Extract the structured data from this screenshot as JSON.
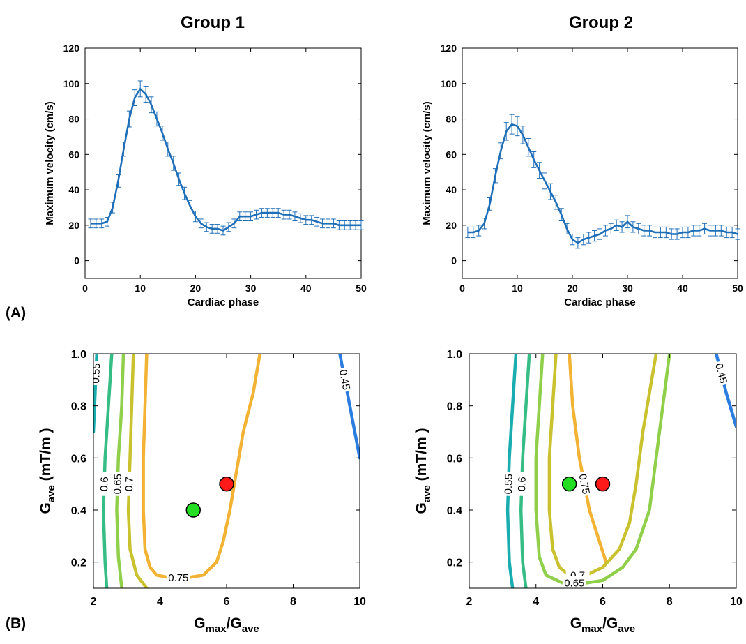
{
  "chart_data": [
    {
      "type": "line",
      "title": "Group 1",
      "panel_label": "(A)",
      "xlabel": "Cardiac phase",
      "ylabel": "Maximum velocity (cm/s)",
      "xlim": [
        0,
        50
      ],
      "ylim": [
        -10,
        120
      ],
      "xticks": [
        "0",
        "10",
        "20",
        "30",
        "40",
        "50"
      ],
      "yticks": [
        "0",
        "20",
        "40",
        "60",
        "80",
        "100",
        "120"
      ],
      "color": "#1f6fb8",
      "x": [
        1,
        2,
        3,
        4,
        5,
        6,
        7,
        8,
        9,
        10,
        11,
        12,
        13,
        14,
        15,
        16,
        17,
        18,
        19,
        20,
        21,
        22,
        23,
        24,
        25,
        26,
        27,
        28,
        29,
        30,
        31,
        32,
        33,
        34,
        35,
        36,
        37,
        38,
        39,
        40,
        41,
        42,
        43,
        44,
        45,
        46,
        47,
        48,
        49,
        50
      ],
      "values": [
        21,
        21,
        21,
        22,
        30,
        45,
        63,
        80,
        92,
        97,
        94,
        88,
        80,
        72,
        63,
        55,
        46,
        38,
        31,
        25,
        21,
        19,
        18,
        18,
        17,
        19,
        21,
        25,
        25,
        25,
        26,
        27,
        27,
        27,
        27,
        26,
        26,
        25,
        24,
        23,
        23,
        22,
        21,
        21,
        21,
        20,
        20,
        20,
        20,
        20
      ],
      "errors": [
        2.5,
        2.5,
        2.5,
        2.5,
        3,
        3.5,
        4,
        4.5,
        4.5,
        4.5,
        4.5,
        4.5,
        4,
        4,
        4,
        4,
        3.5,
        3.5,
        3,
        3,
        2.5,
        2.5,
        2.5,
        2.5,
        2.5,
        2.5,
        2.5,
        2.5,
        2.5,
        2.5,
        2.5,
        2.5,
        2.5,
        2.5,
        2.5,
        2.5,
        2.5,
        2.5,
        2.5,
        2.5,
        2.5,
        2.5,
        2.5,
        2.5,
        2.5,
        2.5,
        2.5,
        2.5,
        2.5,
        2.5
      ]
    },
    {
      "type": "line",
      "title": "Group 2",
      "xlabel": "Cardiac phase",
      "ylabel": "Maximum velocity (cm/s)",
      "xlim": [
        0,
        50
      ],
      "ylim": [
        -10,
        120
      ],
      "xticks": [
        "0",
        "10",
        "20",
        "30",
        "40",
        "50"
      ],
      "yticks": [
        "0",
        "20",
        "40",
        "60",
        "80",
        "100",
        "120"
      ],
      "color": "#1f6fb8",
      "x": [
        1,
        2,
        3,
        4,
        5,
        6,
        7,
        8,
        9,
        10,
        11,
        12,
        13,
        14,
        15,
        16,
        17,
        18,
        19,
        20,
        21,
        22,
        23,
        24,
        25,
        26,
        27,
        28,
        29,
        30,
        31,
        32,
        33,
        34,
        35,
        36,
        37,
        38,
        39,
        40,
        41,
        42,
        43,
        44,
        45,
        46,
        47,
        48,
        49,
        50
      ],
      "values": [
        16,
        16,
        17,
        21,
        32,
        48,
        62,
        73,
        77,
        76,
        71,
        64,
        57,
        51,
        45,
        39,
        33,
        26,
        18,
        12,
        10,
        12,
        13,
        14,
        15,
        17,
        18,
        20,
        19,
        22,
        19,
        18,
        17,
        17,
        16,
        16,
        16,
        15,
        15,
        16,
        16,
        17,
        17,
        18,
        17,
        17,
        17,
        16,
        16,
        15
      ],
      "errors": [
        3,
        3,
        3,
        3,
        3.5,
        4,
        4.5,
        5,
        5.5,
        5.5,
        5,
        5,
        4.5,
        4.5,
        4.5,
        4.5,
        4,
        3.5,
        3,
        3,
        3,
        3,
        3,
        3,
        3,
        3,
        3,
        3,
        3,
        3.5,
        3,
        3,
        3,
        3,
        3,
        3,
        3,
        3,
        3,
        3,
        3,
        3,
        3,
        3,
        3,
        3,
        3,
        3,
        3,
        3
      ]
    },
    {
      "type": "contour",
      "panel_label": "(B)",
      "xlabel_base": "G",
      "xlabel_sub1": "max",
      "xlabel_mid": "/G",
      "xlabel_sub2": "ave",
      "ylabel_base": "G",
      "ylabel_sub": "ave",
      "ylabel_unit": "(mT/m )",
      "xlim": [
        2,
        10
      ],
      "ylim": [
        0.1,
        1.0
      ],
      "xticks": [
        "2",
        "4",
        "6",
        "8",
        "10"
      ],
      "yticks": [
        "0.2",
        "0.4",
        "0.6",
        "0.8",
        "1.0"
      ],
      "levels": [
        {
          "level": "0.75",
          "color": "#f2b233",
          "points": [
            [
              3.6,
              1.0
            ],
            [
              3.55,
              0.8
            ],
            [
              3.5,
              0.6
            ],
            [
              3.5,
              0.4
            ],
            [
              3.55,
              0.25
            ],
            [
              3.7,
              0.18
            ],
            [
              3.9,
              0.15
            ],
            [
              4.3,
              0.14
            ],
            [
              4.8,
              0.14
            ],
            [
              5.3,
              0.15
            ],
            [
              5.7,
              0.2
            ],
            [
              5.9,
              0.28
            ],
            [
              6.1,
              0.4
            ],
            [
              6.3,
              0.55
            ],
            [
              6.5,
              0.7
            ],
            [
              6.8,
              0.85
            ],
            [
              7.0,
              1.0
            ]
          ]
        },
        {
          "level": "0.7",
          "color": "#c9c12e",
          "points": [
            [
              3.2,
              1.0
            ],
            [
              3.15,
              0.8
            ],
            [
              3.1,
              0.6
            ],
            [
              3.05,
              0.4
            ],
            [
              3.1,
              0.25
            ],
            [
              3.3,
              0.15
            ],
            [
              3.6,
              0.1
            ]
          ]
        },
        {
          "level": "0.65",
          "color": "#8fcf4a",
          "points": [
            [
              2.9,
              1.0
            ],
            [
              2.85,
              0.8
            ],
            [
              2.75,
              0.6
            ],
            [
              2.7,
              0.4
            ],
            [
              2.75,
              0.22
            ],
            [
              2.85,
              0.1
            ]
          ]
        },
        {
          "level": "0.6",
          "color": "#36bd86",
          "points": [
            [
              2.55,
              1.0
            ],
            [
              2.45,
              0.8
            ],
            [
              2.35,
              0.6
            ],
            [
              2.3,
              0.4
            ],
            [
              2.35,
              0.2
            ],
            [
              2.4,
              0.1
            ]
          ]
        },
        {
          "level": "0.55",
          "color": "#1aadb0",
          "points": [
            [
              2.1,
              1.0
            ],
            [
              2.05,
              0.85
            ],
            [
              2.0,
              0.7
            ]
          ]
        },
        {
          "level": "0.45",
          "color": "#2b7de0",
          "points": [
            [
              9.4,
              1.0
            ],
            [
              9.7,
              0.8
            ],
            [
              10.0,
              0.6
            ]
          ]
        }
      ],
      "markers": [
        {
          "name": "green",
          "x": 5.0,
          "y": 0.4,
          "color": "#22dd22"
        },
        {
          "name": "red",
          "x": 6.0,
          "y": 0.5,
          "color": "#ff1a1a"
        }
      ]
    },
    {
      "type": "contour",
      "xlabel_base": "G",
      "xlabel_sub1": "max",
      "xlabel_mid": "/G",
      "xlabel_sub2": "ave",
      "ylabel_base": "G",
      "ylabel_sub": "ave",
      "ylabel_unit": "(mT/m )",
      "xlim": [
        2,
        10
      ],
      "ylim": [
        0.1,
        1.0
      ],
      "xticks": [
        "2",
        "4",
        "6",
        "8",
        "10"
      ],
      "yticks": [
        "0.2",
        "0.4",
        "0.6",
        "0.8",
        "1.0"
      ],
      "levels": [
        {
          "level": "0.75",
          "color": "#f2b233",
          "points": [
            [
              5.0,
              1.0
            ],
            [
              5.1,
              0.8
            ],
            [
              5.3,
              0.6
            ],
            [
              5.6,
              0.4
            ],
            [
              5.9,
              0.28
            ],
            [
              6.1,
              0.2
            ]
          ]
        },
        {
          "level": "0.7",
          "color": "#c9c12e",
          "points": [
            [
              4.6,
              1.0
            ],
            [
              4.5,
              0.8
            ],
            [
              4.4,
              0.6
            ],
            [
              4.4,
              0.4
            ],
            [
              4.5,
              0.25
            ],
            [
              4.7,
              0.18
            ],
            [
              5.0,
              0.15
            ],
            [
              5.5,
              0.15
            ],
            [
              6.0,
              0.18
            ],
            [
              6.5,
              0.25
            ],
            [
              6.8,
              0.35
            ],
            [
              7.0,
              0.5
            ],
            [
              7.2,
              0.7
            ],
            [
              7.4,
              0.85
            ],
            [
              7.6,
              1.0
            ]
          ]
        },
        {
          "level": "0.65",
          "color": "#8fcf4a",
          "points": [
            [
              4.2,
              1.0
            ],
            [
              4.1,
              0.8
            ],
            [
              4.0,
              0.6
            ],
            [
              4.0,
              0.4
            ],
            [
              4.1,
              0.22
            ],
            [
              4.3,
              0.15
            ],
            [
              4.8,
              0.12
            ],
            [
              5.5,
              0.12
            ],
            [
              6.0,
              0.13
            ],
            [
              6.6,
              0.18
            ],
            [
              7.0,
              0.25
            ],
            [
              7.4,
              0.4
            ],
            [
              7.6,
              0.6
            ],
            [
              7.8,
              0.8
            ],
            [
              8.0,
              1.0
            ]
          ]
        },
        {
          "level": "0.6",
          "color": "#36bd86",
          "points": [
            [
              3.8,
              1.0
            ],
            [
              3.7,
              0.8
            ],
            [
              3.6,
              0.6
            ],
            [
              3.55,
              0.4
            ],
            [
              3.6,
              0.2
            ],
            [
              3.7,
              0.1
            ]
          ]
        },
        {
          "level": "0.55",
          "color": "#1aadb0",
          "points": [
            [
              3.4,
              1.0
            ],
            [
              3.3,
              0.8
            ],
            [
              3.2,
              0.6
            ],
            [
              3.15,
              0.4
            ],
            [
              3.2,
              0.2
            ],
            [
              3.3,
              0.1
            ]
          ]
        },
        {
          "level": "0.45",
          "color": "#2b7de0",
          "points": [
            [
              9.4,
              1.0
            ],
            [
              9.7,
              0.85
            ],
            [
              10.0,
              0.72
            ]
          ]
        }
      ],
      "markers": [
        {
          "name": "green",
          "x": 5.0,
          "y": 0.5,
          "color": "#22dd22"
        },
        {
          "name": "red",
          "x": 6.0,
          "y": 0.5,
          "color": "#ff1a1a"
        }
      ]
    }
  ]
}
